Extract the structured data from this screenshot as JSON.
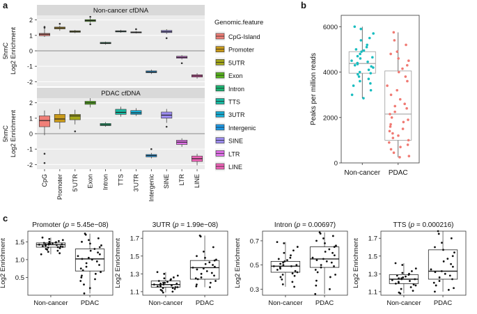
{
  "figure": {
    "panel_a_label": "a",
    "panel_b_label": "b",
    "panel_c_label": "c",
    "legend_title": "Genomic.feature"
  },
  "colors": {
    "CpG-Island": "#f07f78",
    "Promoter": "#c99a1a",
    "5UTR": "#a3a61a",
    "Exon": "#58b41f",
    "Intron": "#1cb674",
    "TTS": "#18b9a2",
    "3UTR": "#18afd6",
    "Intergenic": "#1d99e6",
    "SINE": "#9c8cef",
    "LTR": "#e071e8",
    "LINE": "#f064b9",
    "noncancer_points": "#19bdc0",
    "pdac_points": "#f07a73",
    "panel_bg": "#ebebeb",
    "strip_bg": "#d9d9d9"
  },
  "chart_data": [
    {
      "id": "a-top",
      "type": "box",
      "title": "Non-cancer cfDNA",
      "ylabel_line1": "5hmC",
      "ylabel_line2": "Log2 Enrichment",
      "ylim": [
        -2.3,
        2.3
      ],
      "yticks": [
        "2",
        "1",
        "0",
        "-1",
        "-2"
      ],
      "reference_line": 0,
      "categories": [
        "CpG-Island",
        "Promoter",
        "5UTR",
        "Exon",
        "Intron",
        "TTS",
        "3UTR",
        "Intergenic",
        "SINE",
        "LTR",
        "LINE"
      ],
      "boxes": [
        {
          "q1": 0.98,
          "median": 1.07,
          "q3": 1.13,
          "low": 0.9,
          "high": 1.5,
          "outliers": [
            1.55,
            1.5
          ]
        },
        {
          "q1": 1.42,
          "median": 1.48,
          "q3": 1.54,
          "low": 1.3,
          "high": 1.62,
          "outliers": [
            1.75
          ]
        },
        {
          "q1": 1.2,
          "median": 1.25,
          "q3": 1.3,
          "low": 1.15,
          "high": 1.35,
          "outliers": []
        },
        {
          "q1": 1.9,
          "median": 1.96,
          "q3": 2.02,
          "low": 1.82,
          "high": 2.12,
          "outliers": [
            2.2,
            1.72
          ]
        },
        {
          "q1": 0.46,
          "median": 0.5,
          "q3": 0.55,
          "low": 0.4,
          "high": 0.6,
          "outliers": []
        },
        {
          "q1": 1.22,
          "median": 1.26,
          "q3": 1.3,
          "low": 1.17,
          "high": 1.36,
          "outliers": []
        },
        {
          "q1": 1.17,
          "median": 1.2,
          "q3": 1.23,
          "low": 1.13,
          "high": 1.27,
          "outliers": [
            1.4
          ]
        },
        {
          "q1": -1.42,
          "median": -1.37,
          "q3": -1.3,
          "low": -1.5,
          "high": -1.22,
          "outliers": []
        },
        {
          "q1": 1.18,
          "median": 1.24,
          "q3": 1.32,
          "low": 1.1,
          "high": 1.4,
          "outliers": [
            0.82
          ]
        },
        {
          "q1": -0.48,
          "median": -0.42,
          "q3": -0.35,
          "low": -0.55,
          "high": -0.28,
          "outliers": [
            -0.8
          ]
        },
        {
          "q1": -1.7,
          "median": -1.62,
          "q3": -1.55,
          "low": -1.8,
          "high": -1.45,
          "outliers": []
        }
      ]
    },
    {
      "id": "a-bottom",
      "type": "box",
      "title": "PDAC cfDNA",
      "ylabel_line1": "5hmC",
      "ylabel_line2": "Log2 Enrichment",
      "ylim": [
        -2.3,
        2.3
      ],
      "yticks": [
        "2",
        "1",
        "0",
        "-1",
        "-2"
      ],
      "reference_line": 0,
      "categories": [
        "CpG",
        "Promoter",
        "5'UTR",
        "Exon",
        "Intron",
        "TTS",
        "3'UTR",
        "Intergenic",
        "SINE",
        "LTR",
        "LINE"
      ],
      "boxes": [
        {
          "q1": 0.45,
          "median": 0.85,
          "q3": 1.15,
          "low": -0.1,
          "high": 1.5,
          "outliers": [
            -1.3,
            -1.9
          ]
        },
        {
          "q1": 0.75,
          "median": 0.95,
          "q3": 1.25,
          "low": 0.3,
          "high": 1.6,
          "outliers": []
        },
        {
          "q1": 0.9,
          "median": 1.15,
          "q3": 1.25,
          "low": 0.6,
          "high": 1.55,
          "outliers": [
            0.15
          ]
        },
        {
          "q1": 1.9,
          "median": 2.0,
          "q3": 2.1,
          "low": 1.7,
          "high": 2.3,
          "outliers": []
        },
        {
          "q1": 0.52,
          "median": 0.58,
          "q3": 0.66,
          "low": 0.45,
          "high": 0.75,
          "outliers": []
        },
        {
          "q1": 1.25,
          "median": 1.38,
          "q3": 1.58,
          "low": 1.1,
          "high": 1.75,
          "outliers": []
        },
        {
          "q1": 1.25,
          "median": 1.35,
          "q3": 1.5,
          "low": 1.15,
          "high": 1.65,
          "outliers": []
        },
        {
          "q1": -1.5,
          "median": -1.42,
          "q3": -1.35,
          "low": -1.6,
          "high": -1.25,
          "outliers": [
            -1.0
          ]
        },
        {
          "q1": 1.0,
          "median": 1.2,
          "q3": 1.4,
          "low": 0.7,
          "high": 1.6,
          "outliers": [
            0.45
          ]
        },
        {
          "q1": -0.7,
          "median": -0.55,
          "q3": -0.42,
          "low": -0.85,
          "high": -0.3,
          "outliers": []
        },
        {
          "q1": -1.8,
          "median": -1.62,
          "q3": -1.45,
          "low": -2.05,
          "high": -1.3,
          "outliers": []
        }
      ]
    },
    {
      "id": "b",
      "type": "box",
      "ylabel": "Peaks per million reads",
      "ylim": [
        0,
        6500
      ],
      "yticks": [
        "0",
        "2000",
        "4000",
        "6000"
      ],
      "categories": [
        "Non-cancer",
        "PDAC"
      ],
      "boxes": [
        {
          "q1": 3950,
          "median": 4380,
          "q3": 4900,
          "low": 2850,
          "high": 6000,
          "points": [
            6000,
            5900,
            5700,
            5500,
            5400,
            5200,
            5100,
            5000,
            4950,
            4900,
            4800,
            4700,
            4650,
            4600,
            4500,
            4450,
            4400,
            4350,
            4300,
            4250,
            4200,
            4100,
            4000,
            3950,
            3900,
            3800,
            3700,
            3600,
            3500,
            3400,
            3200,
            3000,
            2850
          ]
        },
        {
          "q1": 1000,
          "median": 2150,
          "q3": 4050,
          "low": 250,
          "high": 5750,
          "points": [
            5750,
            5400,
            5200,
            4900,
            4800,
            4600,
            4500,
            4300,
            4150,
            4000,
            3800,
            3600,
            3400,
            3200,
            3000,
            2800,
            2600,
            2500,
            2400,
            2250,
            2150,
            2000,
            1900,
            1800,
            1700,
            1600,
            1500,
            1400,
            1300,
            1200,
            1100,
            1000,
            900,
            800,
            700,
            600,
            450,
            300,
            250
          ]
        }
      ]
    },
    {
      "id": "c1",
      "type": "box",
      "title": "Promoter (p = 5.45e−08)",
      "title_name": "Promoter",
      "title_p": "5.45e−08",
      "ylabel": "Log2 Enrichment",
      "ylim": [
        0.0,
        1.8
      ],
      "yticks": [
        "0.5",
        "1.0",
        "1.5"
      ],
      "yticks_values": [
        0.5,
        1.0,
        1.5
      ],
      "categories": [
        "Non-cancer",
        "PDAC"
      ],
      "boxes": [
        {
          "q1": 1.35,
          "median": 1.42,
          "q3": 1.47,
          "low": 1.15,
          "high": 1.62,
          "points": [
            1.62,
            1.58,
            1.55,
            1.52,
            1.5,
            1.49,
            1.48,
            1.47,
            1.46,
            1.45,
            1.44,
            1.43,
            1.43,
            1.42,
            1.42,
            1.41,
            1.4,
            1.39,
            1.38,
            1.37,
            1.36,
            1.35,
            1.34,
            1.32,
            1.3,
            1.28,
            1.25,
            1.22,
            1.18,
            1.15
          ]
        },
        {
          "q1": 0.68,
          "median": 1.02,
          "q3": 1.3,
          "low": 0.05,
          "high": 1.73,
          "points": [
            1.73,
            1.7,
            1.6,
            1.55,
            1.5,
            1.45,
            1.4,
            1.35,
            1.3,
            1.25,
            1.2,
            1.15,
            1.1,
            1.05,
            1.02,
            1.0,
            0.95,
            0.9,
            0.85,
            0.8,
            0.75,
            0.7,
            0.65,
            0.6,
            0.55,
            0.5,
            0.45,
            0.4,
            0.3,
            0.2,
            0.05
          ]
        }
      ]
    },
    {
      "id": "c2",
      "type": "box",
      "title": "3UTR (p = 1.99e−08)",
      "title_name": "3UTR",
      "title_p": "1.99e−08",
      "ylabel": "Log2 Enrichment",
      "ylim": [
        1.06,
        1.78
      ],
      "yticks": [
        "1.1",
        "1.3",
        "1.5",
        "1.7"
      ],
      "yticks_values": [
        1.1,
        1.3,
        1.5,
        1.7
      ],
      "categories": [
        "Non-cancer",
        "PDAC"
      ],
      "boxes": [
        {
          "q1": 1.15,
          "median": 1.18,
          "q3": 1.22,
          "low": 1.09,
          "high": 1.32,
          "points": [
            1.32,
            1.3,
            1.28,
            1.26,
            1.25,
            1.24,
            1.23,
            1.22,
            1.21,
            1.2,
            1.2,
            1.19,
            1.19,
            1.18,
            1.18,
            1.17,
            1.17,
            1.16,
            1.16,
            1.15,
            1.15,
            1.14,
            1.14,
            1.13,
            1.12,
            1.11,
            1.1,
            1.09
          ]
        },
        {
          "q1": 1.24,
          "median": 1.37,
          "q3": 1.45,
          "low": 1.15,
          "high": 1.73,
          "points": [
            1.73,
            1.72,
            1.6,
            1.55,
            1.5,
            1.48,
            1.46,
            1.45,
            1.43,
            1.41,
            1.4,
            1.38,
            1.37,
            1.36,
            1.35,
            1.33,
            1.31,
            1.3,
            1.28,
            1.26,
            1.25,
            1.24,
            1.22,
            1.2,
            1.18,
            1.16,
            1.15
          ]
        }
      ]
    },
    {
      "id": "c3",
      "type": "box",
      "title": "Intron (p = 0.00697)",
      "title_name": "Intron",
      "title_p": "0.00697",
      "ylabel": "Log2 Enrichment",
      "ylim": [
        0.25,
        0.78
      ],
      "yticks": [
        "0.3",
        "0.5",
        "0.7"
      ],
      "yticks_values": [
        0.3,
        0.5,
        0.7
      ],
      "categories": [
        "Non-cancer",
        "PDAC"
      ],
      "boxes": [
        {
          "q1": 0.44,
          "median": 0.49,
          "q3": 0.53,
          "low": 0.32,
          "high": 0.69,
          "points": [
            0.69,
            0.68,
            0.65,
            0.62,
            0.6,
            0.58,
            0.56,
            0.55,
            0.54,
            0.53,
            0.52,
            0.51,
            0.5,
            0.5,
            0.49,
            0.49,
            0.48,
            0.47,
            0.46,
            0.45,
            0.44,
            0.43,
            0.42,
            0.41,
            0.4,
            0.38,
            0.36,
            0.34,
            0.32
          ]
        },
        {
          "q1": 0.48,
          "median": 0.55,
          "q3": 0.65,
          "low": 0.26,
          "high": 0.77,
          "points": [
            0.77,
            0.76,
            0.74,
            0.72,
            0.7,
            0.68,
            0.66,
            0.65,
            0.63,
            0.61,
            0.6,
            0.58,
            0.56,
            0.55,
            0.54,
            0.53,
            0.52,
            0.5,
            0.49,
            0.48,
            0.46,
            0.44,
            0.42,
            0.4,
            0.37,
            0.33,
            0.3,
            0.26
          ]
        }
      ]
    },
    {
      "id": "c4",
      "type": "box",
      "title": "TTS (p = 0.000216)",
      "title_name": "TTS",
      "title_p": "0.000216",
      "ylabel": "Log2 Enrichment",
      "ylim": [
        1.06,
        1.78
      ],
      "yticks": [
        "1.1",
        "1.3",
        "1.5",
        "1.7"
      ],
      "yticks_values": [
        1.1,
        1.3,
        1.5,
        1.7
      ],
      "categories": [
        "Non-cancer",
        "PDAC"
      ],
      "boxes": [
        {
          "q1": 1.19,
          "median": 1.24,
          "q3": 1.29,
          "low": 1.08,
          "high": 1.42,
          "points": [
            1.42,
            1.4,
            1.36,
            1.33,
            1.31,
            1.3,
            1.29,
            1.28,
            1.27,
            1.26,
            1.25,
            1.25,
            1.24,
            1.24,
            1.23,
            1.22,
            1.21,
            1.2,
            1.19,
            1.18,
            1.17,
            1.15,
            1.13,
            1.11,
            1.09,
            1.08
          ]
        },
        {
          "q1": 1.24,
          "median": 1.33,
          "q3": 1.57,
          "low": 1.1,
          "high": 1.78,
          "points": [
            1.78,
            1.75,
            1.7,
            1.65,
            1.6,
            1.57,
            1.54,
            1.5,
            1.47,
            1.44,
            1.41,
            1.38,
            1.35,
            1.33,
            1.32,
            1.3,
            1.28,
            1.26,
            1.24,
            1.22,
            1.2,
            1.17,
            1.14,
            1.12,
            1.1
          ]
        }
      ]
    }
  ]
}
